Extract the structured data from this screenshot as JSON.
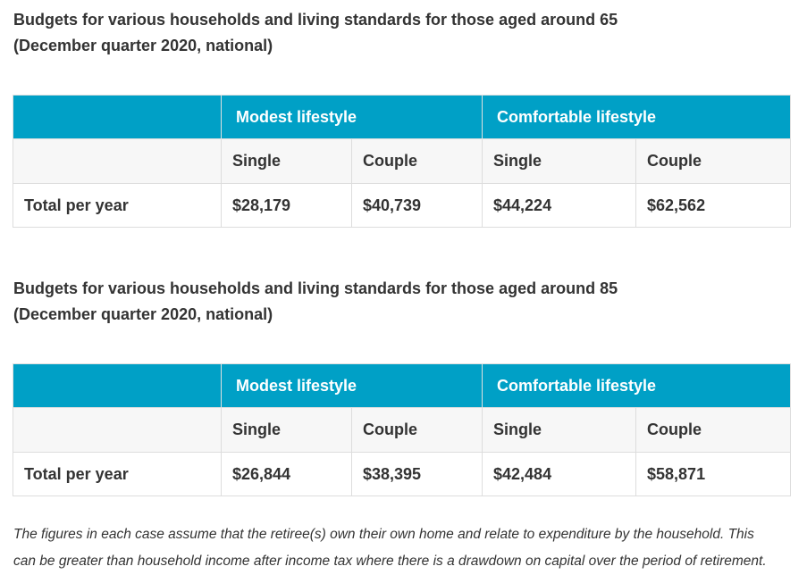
{
  "tables": [
    {
      "heading_line1": "Budgets for various households and living standards for those aged around 65",
      "heading_line2": "(December quarter 2020, national)",
      "groups": [
        "Modest lifestyle",
        "Comfortable lifestyle"
      ],
      "subheaders": [
        "Single",
        "Couple",
        "Single",
        "Couple"
      ],
      "row_label": "Total per year",
      "values": [
        "$28,179",
        "$40,739",
        "$44,224",
        "$62,562"
      ]
    },
    {
      "heading_line1": "Budgets for various households and living standards for those aged around 85",
      "heading_line2": "(December quarter 2020, national)",
      "groups": [
        "Modest lifestyle",
        "Comfortable lifestyle"
      ],
      "subheaders": [
        "Single",
        "Couple",
        "Single",
        "Couple"
      ],
      "row_label": "Total per year",
      "values": [
        "$26,844",
        "$38,395",
        "$42,484",
        "$58,871"
      ]
    }
  ],
  "note": {
    "line1": "The figures in each case assume that the retiree(s) own their own home and relate to expenditure by the household. This",
    "line2": "can be greater than household income after income tax where there is a drawdown on capital over the period of retirement."
  },
  "colors": {
    "header_bg": "#00a0c6",
    "subheader_bg": "#f7f7f7",
    "border": "#dddddd",
    "text": "#333333"
  }
}
